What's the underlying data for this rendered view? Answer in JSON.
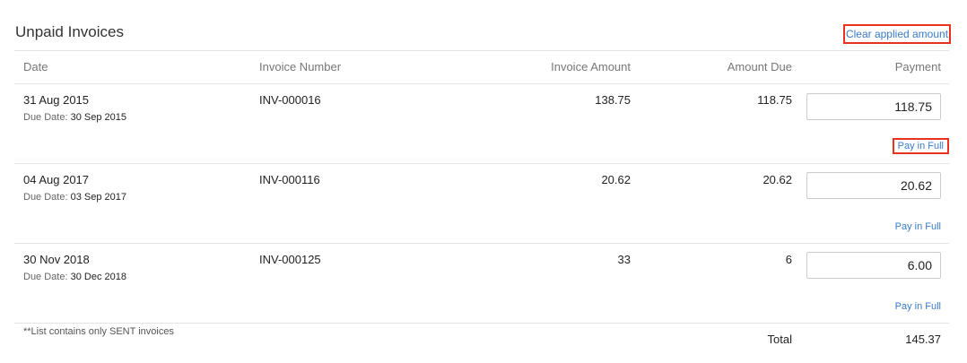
{
  "title": "Unpaid Invoices",
  "clear_label": "Clear applied amount",
  "headers": {
    "date": "Date",
    "invoice_number": "Invoice Number",
    "invoice_amount": "Invoice Amount",
    "amount_due": "Amount Due",
    "payment": "Payment"
  },
  "due_label": "Due Date:",
  "rows": [
    {
      "date": "31 Aug 2015",
      "due_date": "30 Sep 2015",
      "number": "INV-000016",
      "amount": "138.75",
      "due": "118.75",
      "payment": "118.75",
      "pay_full": "Pay in Full"
    },
    {
      "date": "04 Aug 2017",
      "due_date": "03 Sep 2017",
      "number": "INV-000116",
      "amount": "20.62",
      "due": "20.62",
      "payment": "20.62",
      "pay_full": "Pay in Full"
    },
    {
      "date": "30 Nov 2018",
      "due_date": "30 Dec 2018",
      "number": "INV-000125",
      "amount": "33",
      "due": "6",
      "payment": "6.00",
      "pay_full": "Pay in Full"
    }
  ],
  "footer": {
    "note": "**List contains only SENT invoices",
    "total_label": "Total",
    "total": "145.37"
  },
  "colors": {
    "link": "#3a7bc8",
    "highlight": "#e8321f"
  }
}
